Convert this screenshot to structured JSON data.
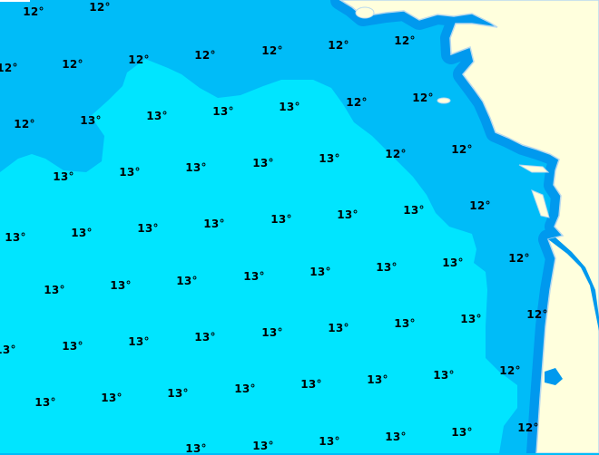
{
  "map": {
    "type": "sea-surface-temperature",
    "unit": "°",
    "colors": {
      "zone_12": "#00bcf8",
      "zone_13": "#00e5ff",
      "coastal_band": "#0099ee",
      "land": "#ffffdd",
      "coastline": "#b8d8ee"
    },
    "labels": [
      {
        "text": "12°",
        "pos": [
          37,
          13
        ]
      },
      {
        "text": "12°",
        "pos": [
          110,
          8
        ]
      },
      {
        "text": "12°",
        "pos": [
          8,
          75
        ]
      },
      {
        "text": "12°",
        "pos": [
          80,
          71
        ]
      },
      {
        "text": "12°",
        "pos": [
          153,
          66
        ]
      },
      {
        "text": "12°",
        "pos": [
          226,
          61
        ]
      },
      {
        "text": "12°",
        "pos": [
          300,
          56
        ]
      },
      {
        "text": "12°",
        "pos": [
          373,
          50
        ]
      },
      {
        "text": "12°",
        "pos": [
          446,
          45
        ]
      },
      {
        "text": "12°",
        "pos": [
          27,
          137
        ]
      },
      {
        "text": "13°",
        "pos": [
          100,
          133
        ]
      },
      {
        "text": "13°",
        "pos": [
          173,
          128
        ]
      },
      {
        "text": "13°",
        "pos": [
          246,
          123
        ]
      },
      {
        "text": "13°",
        "pos": [
          319,
          118
        ]
      },
      {
        "text": "12°",
        "pos": [
          393,
          113
        ]
      },
      {
        "text": "12°",
        "pos": [
          466,
          108
        ]
      },
      {
        "text": "13°",
        "pos": [
          70,
          195
        ]
      },
      {
        "text": "13°",
        "pos": [
          143,
          190
        ]
      },
      {
        "text": "13°",
        "pos": [
          216,
          185
        ]
      },
      {
        "text": "13°",
        "pos": [
          290,
          180
        ]
      },
      {
        "text": "13°",
        "pos": [
          363,
          175
        ]
      },
      {
        "text": "12°",
        "pos": [
          436,
          170
        ]
      },
      {
        "text": "12°",
        "pos": [
          509,
          165
        ]
      },
      {
        "text": "13°",
        "pos": [
          17,
          262
        ]
      },
      {
        "text": "13°",
        "pos": [
          90,
          257
        ]
      },
      {
        "text": "13°",
        "pos": [
          163,
          252
        ]
      },
      {
        "text": "13°",
        "pos": [
          236,
          247
        ]
      },
      {
        "text": "13°",
        "pos": [
          310,
          242
        ]
      },
      {
        "text": "13°",
        "pos": [
          383,
          237
        ]
      },
      {
        "text": "13°",
        "pos": [
          456,
          232
        ]
      },
      {
        "text": "12°",
        "pos": [
          529,
          227
        ]
      },
      {
        "text": "13°",
        "pos": [
          60,
          320
        ]
      },
      {
        "text": "13°",
        "pos": [
          133,
          315
        ]
      },
      {
        "text": "13°",
        "pos": [
          206,
          310
        ]
      },
      {
        "text": "13°",
        "pos": [
          280,
          305
        ]
      },
      {
        "text": "13°",
        "pos": [
          353,
          300
        ]
      },
      {
        "text": "13°",
        "pos": [
          426,
          295
        ]
      },
      {
        "text": "13°",
        "pos": [
          499,
          290
        ]
      },
      {
        "text": "12°",
        "pos": [
          572,
          285
        ]
      },
      {
        "text": "13°",
        "pos": [
          6,
          386
        ]
      },
      {
        "text": "13°",
        "pos": [
          80,
          382
        ]
      },
      {
        "text": "13°",
        "pos": [
          153,
          377
        ]
      },
      {
        "text": "13°",
        "pos": [
          226,
          372
        ]
      },
      {
        "text": "13°",
        "pos": [
          300,
          367
        ]
      },
      {
        "text": "13°",
        "pos": [
          373,
          362
        ]
      },
      {
        "text": "13°",
        "pos": [
          446,
          357
        ]
      },
      {
        "text": "13°",
        "pos": [
          519,
          352
        ]
      },
      {
        "text": "12°",
        "pos": [
          592,
          347
        ]
      },
      {
        "text": "13°",
        "pos": [
          50,
          444
        ]
      },
      {
        "text": "13°",
        "pos": [
          123,
          439
        ]
      },
      {
        "text": "13°",
        "pos": [
          196,
          434
        ]
      },
      {
        "text": "13°",
        "pos": [
          270,
          429
        ]
      },
      {
        "text": "13°",
        "pos": [
          343,
          424
        ]
      },
      {
        "text": "13°",
        "pos": [
          416,
          419
        ]
      },
      {
        "text": "13°",
        "pos": [
          489,
          414
        ]
      },
      {
        "text": "12°",
        "pos": [
          562,
          409
        ]
      },
      {
        "text": "13°",
        "pos": [
          216,
          495
        ]
      },
      {
        "text": "13°",
        "pos": [
          290,
          492
        ]
      },
      {
        "text": "13°",
        "pos": [
          363,
          487
        ]
      },
      {
        "text": "13°",
        "pos": [
          436,
          482
        ]
      },
      {
        "text": "13°",
        "pos": [
          509,
          477
        ]
      },
      {
        "text": "12°",
        "pos": [
          582,
          472
        ]
      }
    ]
  }
}
